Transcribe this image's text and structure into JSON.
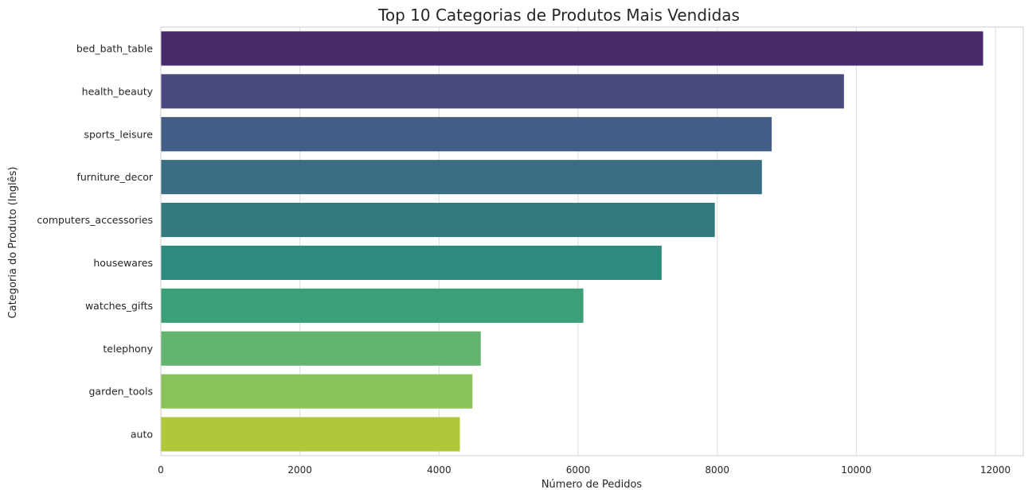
{
  "chart_data": {
    "type": "bar",
    "orientation": "horizontal",
    "title": "Top 10 Categorias de Produtos Mais Vendidas",
    "xlabel": "Número de Pedidos",
    "ylabel": "Categoria do Produto (Inglês)",
    "xlim": [
      0,
      12400
    ],
    "xticks": [
      0,
      2000,
      4000,
      6000,
      8000,
      10000,
      12000
    ],
    "grid": true,
    "categories": [
      "bed_bath_table",
      "health_beauty",
      "sports_leisure",
      "furniture_decor",
      "computers_accessories",
      "housewares",
      "watches_gifts",
      "telephony",
      "garden_tools",
      "auto"
    ],
    "values": [
      11823,
      9822,
      8783,
      8642,
      7965,
      7200,
      6075,
      4600,
      4480,
      4300
    ],
    "colors": [
      "#482A6A",
      "#4A497F",
      "#425E86",
      "#3A6E84",
      "#327A80",
      "#2D8B7D",
      "#3BA077",
      "#62B46F",
      "#87C45A",
      "#B1C739"
    ],
    "gridline_color": "#DCDCDC",
    "axis_color": "#CCCCCC",
    "text_color": "#262626"
  }
}
